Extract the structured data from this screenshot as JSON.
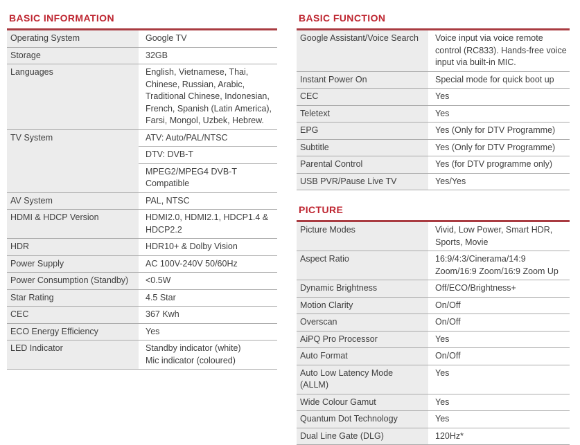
{
  "colors": {
    "accent_red_title": "#be2530",
    "accent_red_rule": "#a93b41",
    "label_column_bg": "#ececec",
    "row_divider": "#a9a9a9",
    "body_text": "#3e3e3e"
  },
  "sections": {
    "basic_information": {
      "title": "BASIC INFORMATION",
      "rows": [
        {
          "label": "Operating System",
          "values": [
            "Google TV"
          ]
        },
        {
          "label": "Storage",
          "values": [
            "32GB"
          ]
        },
        {
          "label": "Languages",
          "values": [
            "English, Vietnamese, Thai, Chinese, Russian, Arabic, Traditional Chinese, Indonesian, French, Spanish (Latin America), Farsi, Mongol, Uzbek, Hebrew."
          ]
        },
        {
          "label": "TV System",
          "values": [
            "ATV: Auto/PAL/NTSC",
            "DTV: DVB-T",
            "MPEG2/MPEG4 DVB-T Compatible"
          ]
        },
        {
          "label": "AV System",
          "values": [
            "PAL, NTSC"
          ]
        },
        {
          "label": "HDMI & HDCP Version",
          "values": [
            "HDMI2.0, HDMI2.1, HDCP1.4 & HDCP2.2"
          ]
        },
        {
          "label": "HDR",
          "values": [
            "HDR10+ & Dolby Vision"
          ]
        },
        {
          "label": "Power Supply",
          "values": [
            "AC 100V-240V 50/60Hz"
          ]
        },
        {
          "label": "Power Consumption (Standby)",
          "values": [
            "<0.5W"
          ]
        },
        {
          "label": "Star Rating",
          "values": [
            "4.5 Star"
          ]
        },
        {
          "label": "CEC",
          "values": [
            "367 Kwh"
          ]
        },
        {
          "label": "ECO Energy Efficiency",
          "values": [
            "Yes"
          ]
        },
        {
          "label": "LED Indicator",
          "values": [
            "Standby indicator (white)\nMic indicator (coloured)"
          ]
        }
      ]
    },
    "basic_function": {
      "title": "BASIC FUNCTION",
      "rows": [
        {
          "label": "Google Assistant/Voice Search",
          "values": [
            "Voice input via voice remote control (RC833). Hands-free voice input via built-in MIC."
          ]
        },
        {
          "label": "Instant Power On",
          "values": [
            "Special mode for quick boot up"
          ]
        },
        {
          "label": "CEC",
          "values": [
            "Yes"
          ]
        },
        {
          "label": "Teletext",
          "values": [
            "Yes"
          ]
        },
        {
          "label": "EPG",
          "values": [
            "Yes (Only for DTV Programme)"
          ]
        },
        {
          "label": "Subtitle",
          "values": [
            "Yes (Only for DTV Programme)"
          ]
        },
        {
          "label": "Parental Control",
          "values": [
            "Yes (for DTV programme only)"
          ]
        },
        {
          "label": "USB PVR/Pause Live TV",
          "values": [
            "Yes/Yes"
          ]
        }
      ]
    },
    "picture": {
      "title": "PICTURE",
      "rows": [
        {
          "label": "Picture Modes",
          "values": [
            "Vivid, Low Power, Smart HDR, Sports, Movie"
          ]
        },
        {
          "label": "Aspect Ratio",
          "values": [
            "16:9/4:3/Cinerama/14:9 Zoom/16:9 Zoom/16:9 Zoom Up"
          ]
        },
        {
          "label": "Dynamic Brightness",
          "values": [
            "Off/ECO/Brightness+"
          ]
        },
        {
          "label": "Motion Clarity",
          "values": [
            "On/Off"
          ]
        },
        {
          "label": "Overscan",
          "values": [
            "On/Off"
          ]
        },
        {
          "label": "AiPQ Pro Processor",
          "values": [
            "Yes"
          ]
        },
        {
          "label": "Auto Format",
          "values": [
            "On/Off"
          ]
        },
        {
          "label": "Auto Low Latency Mode (ALLM)",
          "values": [
            "Yes"
          ]
        },
        {
          "label": "Wide Colour Gamut",
          "values": [
            "Yes"
          ]
        },
        {
          "label": "Quantum Dot Technology",
          "values": [
            "Yes"
          ]
        },
        {
          "label": "Dual Line Gate (DLG)",
          "values": [
            "120Hz*"
          ]
        }
      ]
    }
  }
}
